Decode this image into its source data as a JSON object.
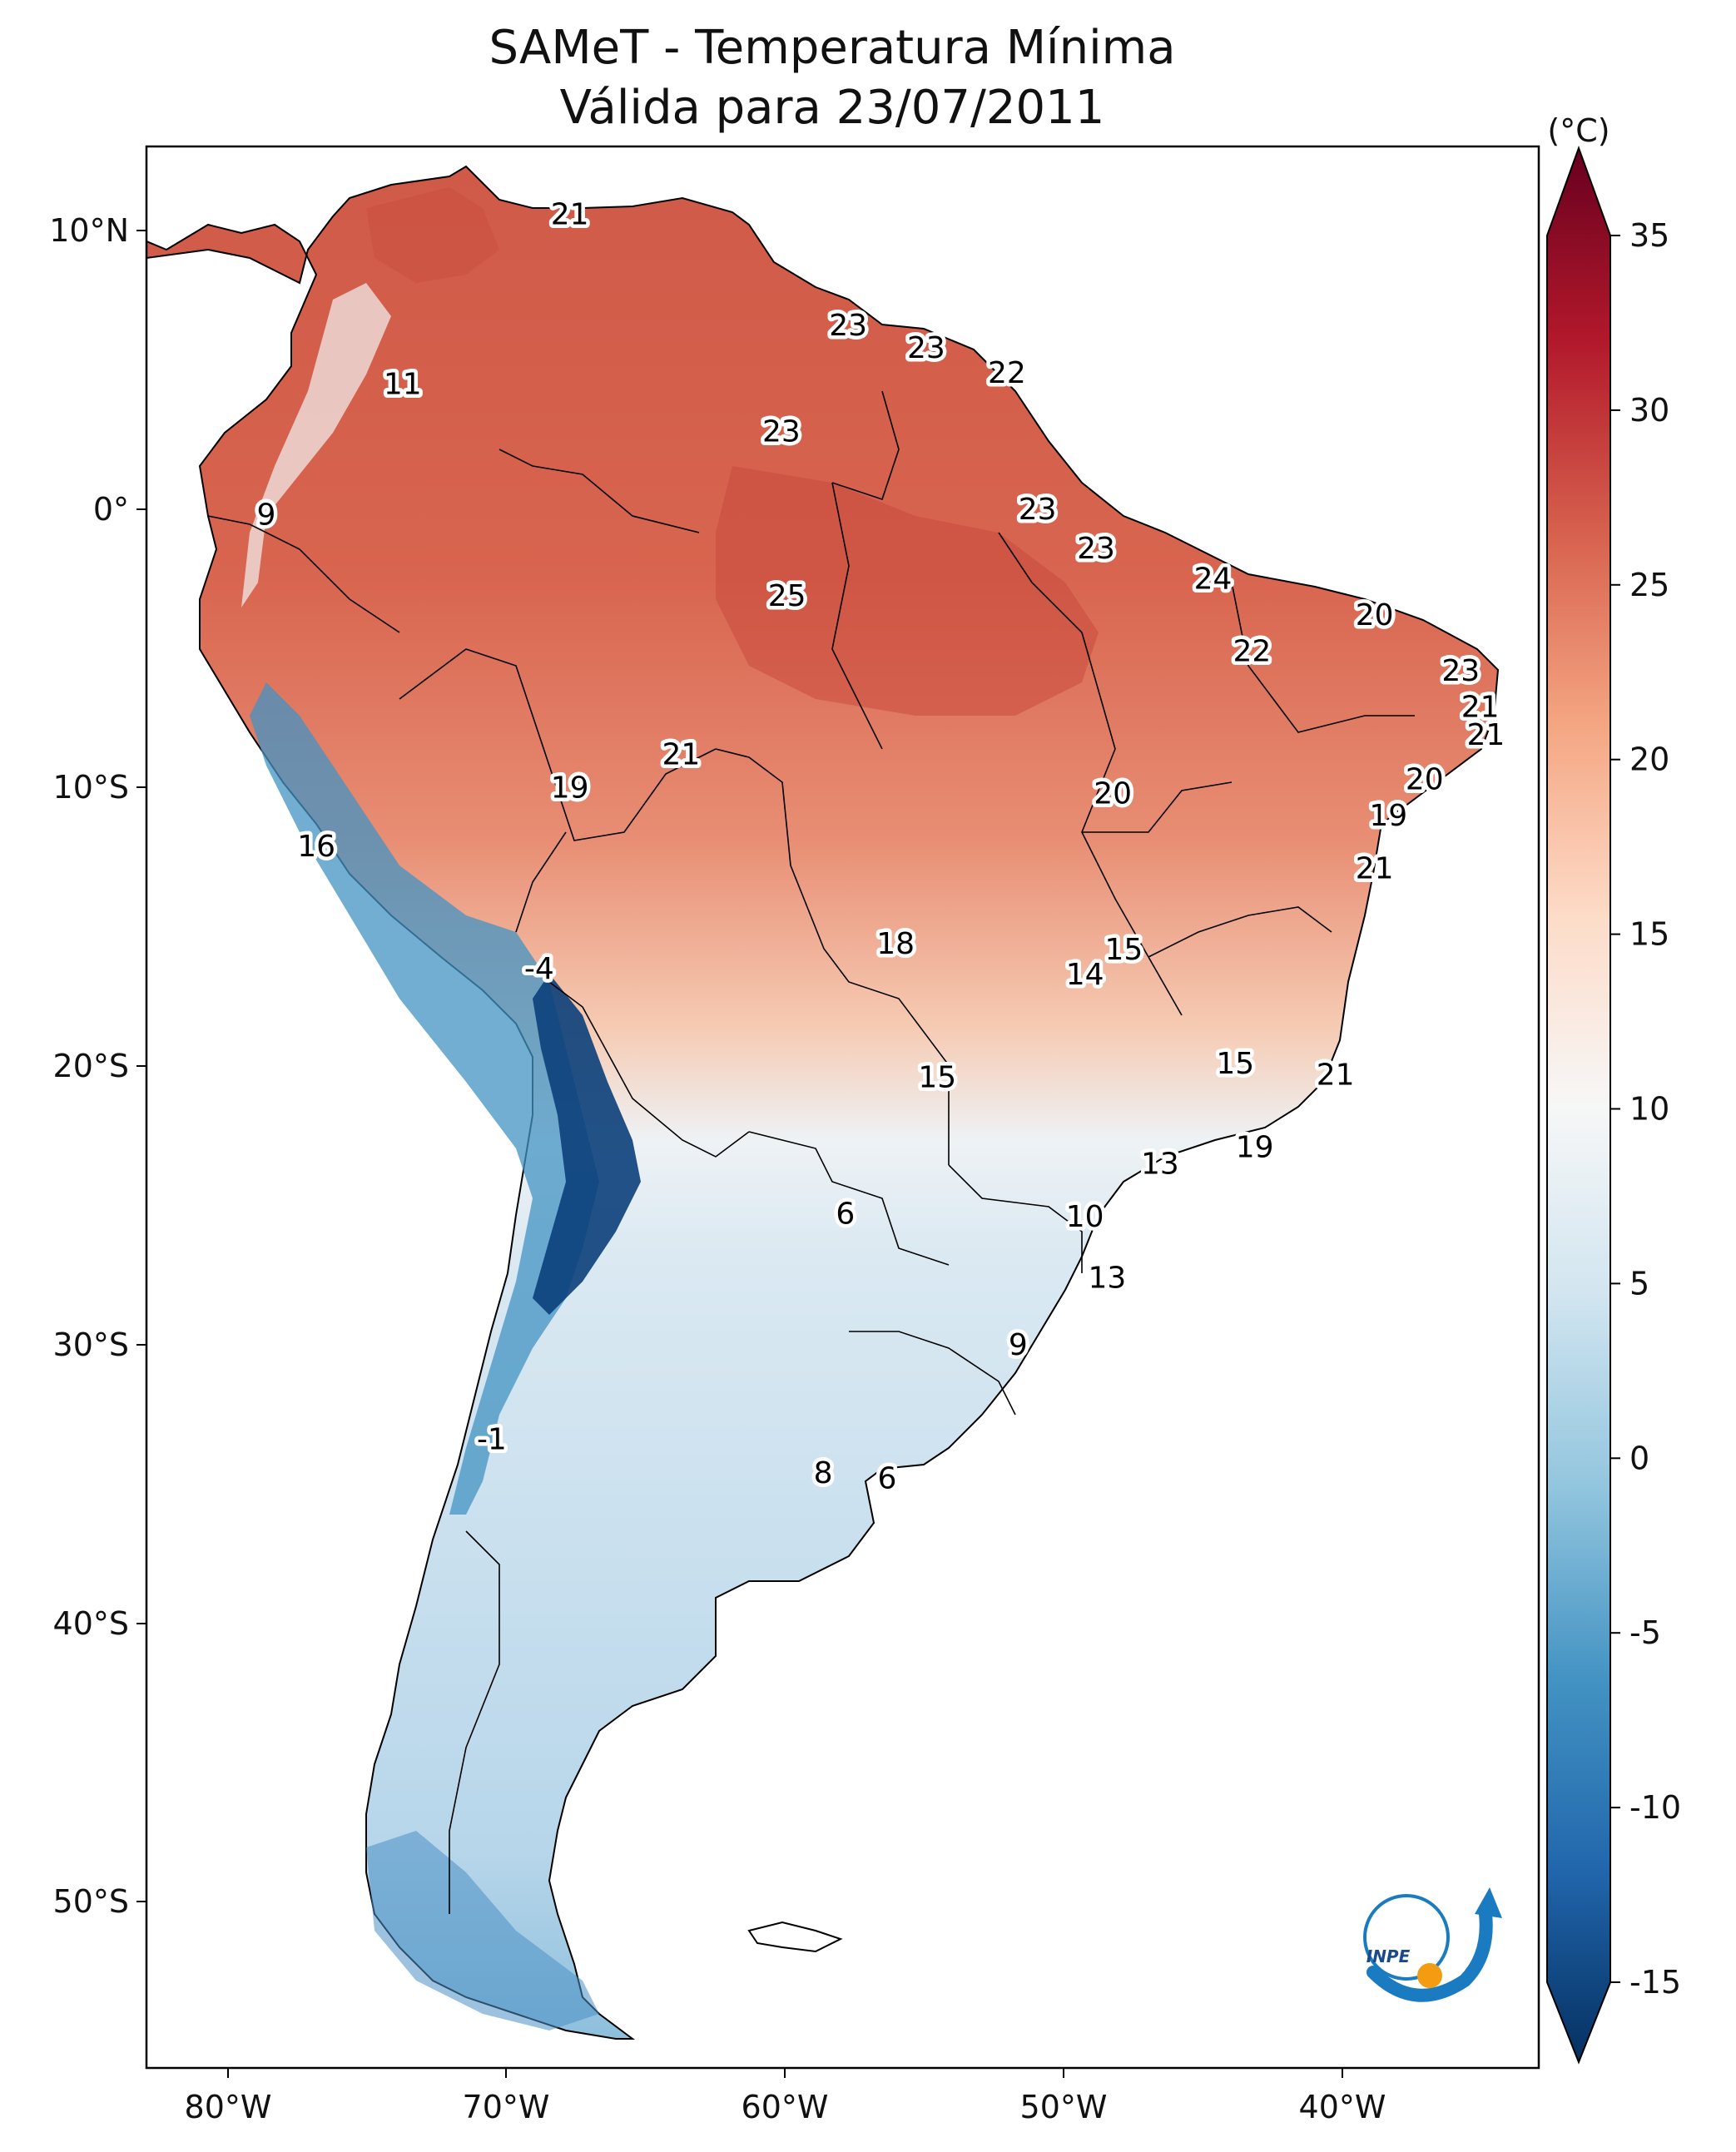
{
  "title": {
    "line1": "SAMeT - Temperatura Mínima",
    "line2": "Válida para 23/07/2011"
  },
  "colorbar": {
    "unit_label": "(°C)",
    "ticks": [
      "35",
      "30",
      "25",
      "20",
      "15",
      "10",
      "5",
      "0",
      "-5",
      "-10",
      "-15"
    ],
    "colormap": "RdBu_r",
    "range": [
      -15,
      35
    ]
  },
  "axes": {
    "lon_ticks": [
      "80°W",
      "70°W",
      "60°W",
      "50°W",
      "40°W"
    ],
    "lat_ticks": [
      "10°N",
      "0°",
      "10°S",
      "20°S",
      "30°S",
      "40°S",
      "50°S"
    ]
  },
  "map": {
    "region": "South America",
    "extent_lon": [
      -83,
      -33
    ],
    "extent_lat": [
      -56,
      13
    ],
    "fill_colors": {
      "hot": "#c94a3d",
      "warm": "#e07d60",
      "mild": "#f6cbb3",
      "cool": "#dbe9f2",
      "cold": "#8dbfdc",
      "frigid": "#1d5f9f"
    }
  },
  "station_labels": [
    {
      "value": "21",
      "lon": -67.8,
      "lat": 10.6
    },
    {
      "value": "11",
      "lon": -73.8,
      "lat": 4.5
    },
    {
      "value": "23",
      "lon": -57.8,
      "lat": 6.6
    },
    {
      "value": "23",
      "lon": -55.0,
      "lat": 5.8
    },
    {
      "value": "22",
      "lon": -52.1,
      "lat": 4.9
    },
    {
      "value": "23",
      "lon": -60.2,
      "lat": 2.8
    },
    {
      "value": "9",
      "lon": -78.7,
      "lat": -0.2
    },
    {
      "value": "23",
      "lon": -51.0,
      "lat": 0.0
    },
    {
      "value": "23",
      "lon": -48.9,
      "lat": -1.4
    },
    {
      "value": "25",
      "lon": -60.0,
      "lat": -3.1
    },
    {
      "value": "24",
      "lon": -44.7,
      "lat": -2.5
    },
    {
      "value": "20",
      "lon": -38.9,
      "lat": -3.8
    },
    {
      "value": "22",
      "lon": -43.3,
      "lat": -5.1
    },
    {
      "value": "23",
      "lon": -35.8,
      "lat": -5.8
    },
    {
      "value": "21",
      "lon": -35.1,
      "lat": -7.1
    },
    {
      "value": "21",
      "lon": -34.9,
      "lat": -8.1
    },
    {
      "value": "21",
      "lon": -63.8,
      "lat": -8.8
    },
    {
      "value": "19",
      "lon": -67.8,
      "lat": -10.0
    },
    {
      "value": "20",
      "lon": -48.3,
      "lat": -10.2
    },
    {
      "value": "20",
      "lon": -37.1,
      "lat": -9.7
    },
    {
      "value": "19",
      "lon": -38.4,
      "lat": -11.0
    },
    {
      "value": "16",
      "lon": -76.9,
      "lat": -12.1
    },
    {
      "value": "21",
      "lon": -38.9,
      "lat": -12.9
    },
    {
      "value": "18",
      "lon": -56.1,
      "lat": -15.6
    },
    {
      "value": "15",
      "lon": -47.9,
      "lat": -15.8
    },
    {
      "value": "14",
      "lon": -49.3,
      "lat": -16.7
    },
    {
      "value": "-4",
      "lon": -68.9,
      "lat": -16.5
    },
    {
      "value": "15",
      "lon": -54.6,
      "lat": -20.4
    },
    {
      "value": "15",
      "lon": -43.9,
      "lat": -19.9
    },
    {
      "value": "21",
      "lon": -40.3,
      "lat": -20.3
    },
    {
      "value": "19",
      "lon": -43.2,
      "lat": -22.9
    },
    {
      "value": "13",
      "lon": -46.6,
      "lat": -23.5
    },
    {
      "value": "6",
      "lon": -57.9,
      "lat": -25.3
    },
    {
      "value": "10",
      "lon": -49.3,
      "lat": -25.4
    },
    {
      "value": "13",
      "lon": -48.5,
      "lat": -27.6
    },
    {
      "value": "9",
      "lon": -51.7,
      "lat": -30.0
    },
    {
      "value": "-1",
      "lon": -70.6,
      "lat": -33.4
    },
    {
      "value": "8",
      "lon": -58.7,
      "lat": -34.6
    },
    {
      "value": "6",
      "lon": -56.4,
      "lat": -34.8
    }
  ],
  "logo": {
    "text": "INPE"
  }
}
